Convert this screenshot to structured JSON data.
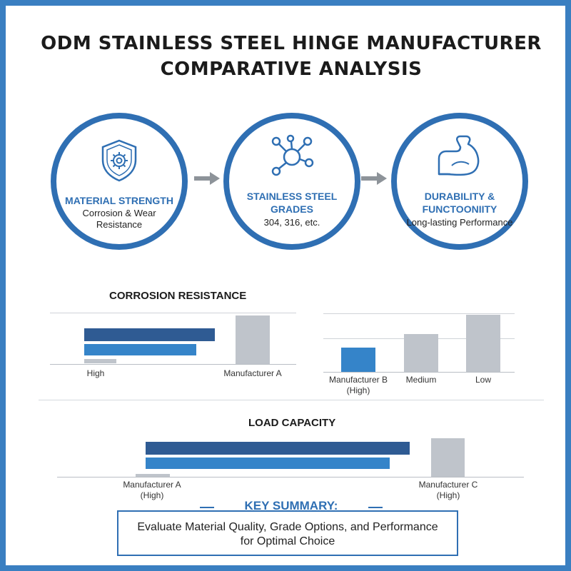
{
  "title": {
    "line1": "ODM STAINLESS STEEL HINGE MANUFACTURER",
    "line2": "COMPARATIVE ANALYSIS"
  },
  "steps": [
    {
      "icon": "shield-gear-icon",
      "title": "MATERIAL STRENGTH",
      "sub_line1": "Corrosion & Wear",
      "sub_line2": "Resistance"
    },
    {
      "icon": "molecule-icon",
      "title_line1": "STAINLESS STEEL",
      "title_line2": "GRADES",
      "sub": "304, 316, etc."
    },
    {
      "icon": "flexed-arm-icon",
      "title_line1": "DURABILITY &",
      "title_line2": "FUNCTOONIITY",
      "sub": "Long-lasting Performance"
    }
  ],
  "corrosion": {
    "title": "CORROSION RESISTANCE",
    "left_chart": {
      "labels": [
        "High",
        "Manufacturer A"
      ]
    },
    "right_chart": {
      "categories": [
        "Manufacturer B",
        "Medium",
        "Low"
      ],
      "category_sub": [
        "(High)",
        "",
        ""
      ]
    }
  },
  "load": {
    "title": "LOAD CAPACITY",
    "label_left_line1": "Manufacturer A",
    "label_left_line2": "(High)",
    "label_right_line1": "Manufacturer C",
    "label_right_line2": "(High)"
  },
  "summary": {
    "title": "KEY SUMMARY:",
    "line1": "Evaluate Material Quality, Grade Options,  and Performance",
    "line2": "for Optimal Choice"
  },
  "colors": {
    "frame": "#3a7fc1",
    "dark_blue": "#2f5b93",
    "mid_blue": "#3584c9",
    "gray": "#bfc4cb"
  }
}
